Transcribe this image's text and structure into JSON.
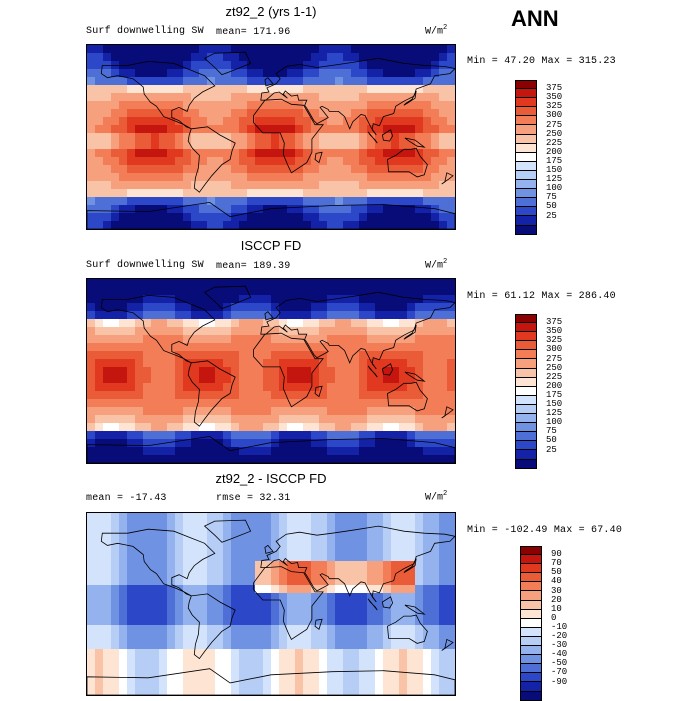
{
  "season": "ANN",
  "panels": [
    {
      "title": "zt92_2 (yrs 1-1)",
      "left_label": "Surf downwelling SW",
      "mean_label": "mean= 171.96",
      "units_base": "W/m",
      "units_exp": "2",
      "minmax": "Min =  47.20 Max = 315.23",
      "map_type": "model",
      "colorbar": {
        "labels": [
          "375",
          "350",
          "325",
          "300",
          "275",
          "250",
          "225",
          "200",
          "175",
          "150",
          "125",
          "100",
          "75",
          "50",
          "25"
        ],
        "colors": [
          "#8b0000",
          "#c4150f",
          "#e0391f",
          "#ea5b38",
          "#f27d57",
          "#f6a07e",
          "#f9c3a8",
          "#fde4d3",
          "#ffffff",
          "#d3e3fb",
          "#b6cdf6",
          "#94b3ee",
          "#6f92e3",
          "#4d6fd6",
          "#2c48c8",
          "#1422a8",
          "#080c78"
        ]
      }
    },
    {
      "title": "ISCCP FD",
      "left_label": "Surf downwelling SW",
      "mean_label": "mean= 189.39",
      "units_base": "W/m",
      "units_exp": "2",
      "minmax": "Min =  61.12 Max = 286.40",
      "map_type": "obs",
      "colorbar": {
        "labels": [
          "375",
          "350",
          "325",
          "300",
          "275",
          "250",
          "225",
          "200",
          "175",
          "150",
          "125",
          "100",
          "75",
          "50",
          "25"
        ],
        "colors": [
          "#8b0000",
          "#c4150f",
          "#e0391f",
          "#ea5b38",
          "#f27d57",
          "#f6a07e",
          "#f9c3a8",
          "#fde4d3",
          "#ffffff",
          "#d3e3fb",
          "#b6cdf6",
          "#94b3ee",
          "#6f92e3",
          "#4d6fd6",
          "#2c48c8",
          "#1422a8",
          "#080c78"
        ]
      }
    },
    {
      "title": "zt92_2 - ISCCP FD",
      "left_label": "mean =  -17.43",
      "mean_label": "rmse =  32.31",
      "units_base": "W/m",
      "units_exp": "2",
      "minmax": "Min = -102.49 Max =  67.40",
      "map_type": "diff",
      "colorbar": {
        "labels": [
          "90",
          "70",
          "50",
          "40",
          "30",
          "20",
          "10",
          "0",
          "-10",
          "-20",
          "-30",
          "-40",
          "-50",
          "-70",
          "-90"
        ],
        "colors": [
          "#8b0000",
          "#c4150f",
          "#e0391f",
          "#ea5b38",
          "#f27d57",
          "#f6a07e",
          "#f9c3a8",
          "#fde4d3",
          "#ffffff",
          "#d3e3fb",
          "#b6cdf6",
          "#94b3ee",
          "#6f92e3",
          "#4d6fd6",
          "#2c48c8",
          "#1422a8",
          "#080c78"
        ]
      }
    }
  ]
}
